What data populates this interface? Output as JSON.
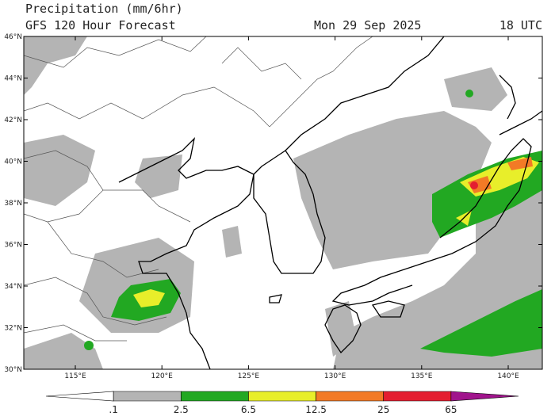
{
  "header": {
    "title": "Precipitation (mm/6hr)",
    "subtitle": "GFS 120 Hour Forecast",
    "date": "Mon 29 Sep 2025",
    "time": "18 UTC"
  },
  "map": {
    "lat_labels": [
      "46°N",
      "44°N",
      "42°N",
      "40°N",
      "38°N",
      "36°N",
      "34°N",
      "32°N",
      "30°N"
    ],
    "lon_labels": [
      "115°E",
      "120°E",
      "125°E",
      "130°E",
      "135°E",
      "140°E"
    ]
  },
  "colorbar": {
    "labels": [
      ".1",
      "2.5",
      "6.5",
      "12.5",
      "25",
      "65"
    ],
    "colors": [
      "#ffffff",
      "#b4b4b4",
      "#22a822",
      "#e8ee2a",
      "#f27a26",
      "#e41e30",
      "#a0148c"
    ]
  }
}
